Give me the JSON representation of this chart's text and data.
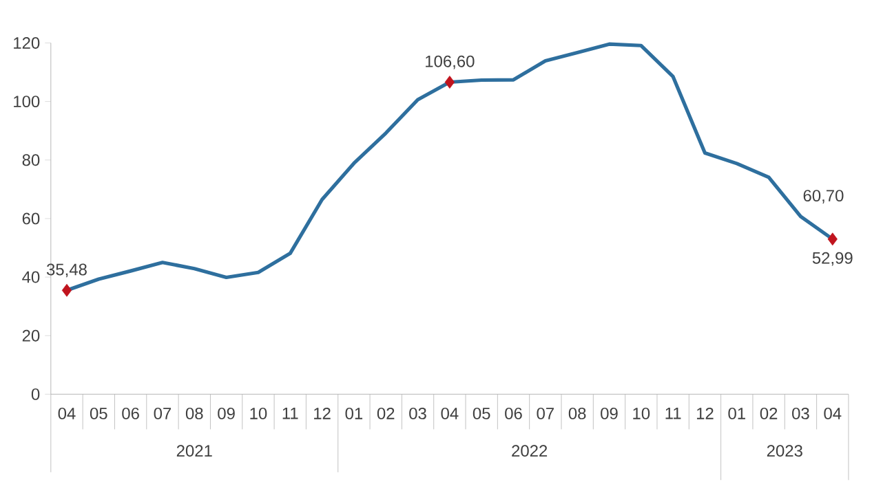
{
  "chart_data": {
    "type": "line",
    "categories": [
      "04",
      "05",
      "06",
      "07",
      "08",
      "09",
      "10",
      "11",
      "12",
      "01",
      "02",
      "03",
      "04",
      "05",
      "06",
      "07",
      "08",
      "09",
      "10",
      "11",
      "12",
      "01",
      "02",
      "03",
      "04"
    ],
    "series": [
      {
        "color": "#2e6f9e",
        "values": [
          35.48,
          39.3,
          42.1,
          45.0,
          42.9,
          39.9,
          41.6,
          48.1,
          66.5,
          78.9,
          89.2,
          100.6,
          106.6,
          107.3,
          107.4,
          113.9,
          116.7,
          119.6,
          119.1,
          108.5,
          82.4,
          78.8,
          74.1,
          60.7,
          52.99
        ],
        "value_labels": [
          "35,48",
          null,
          null,
          null,
          null,
          null,
          null,
          null,
          null,
          null,
          null,
          null,
          "106,60",
          null,
          null,
          null,
          null,
          null,
          null,
          null,
          null,
          null,
          null,
          "60,70",
          "52,99"
        ]
      },
      {
        "type": "scatter",
        "color": "#c0141e",
        "marker": "diamond",
        "values": [
          35.48,
          null,
          null,
          null,
          null,
          null,
          null,
          null,
          null,
          null,
          null,
          null,
          106.6,
          null,
          null,
          null,
          null,
          null,
          null,
          null,
          null,
          null,
          null,
          null,
          52.99
        ]
      }
    ],
    "annotations": [
      "2021",
      "2022",
      "2023"
    ],
    "ylim": [
      0,
      120
    ],
    "yticks": [
      0,
      20,
      40,
      60,
      80,
      100,
      120
    ],
    "grid": false
  }
}
